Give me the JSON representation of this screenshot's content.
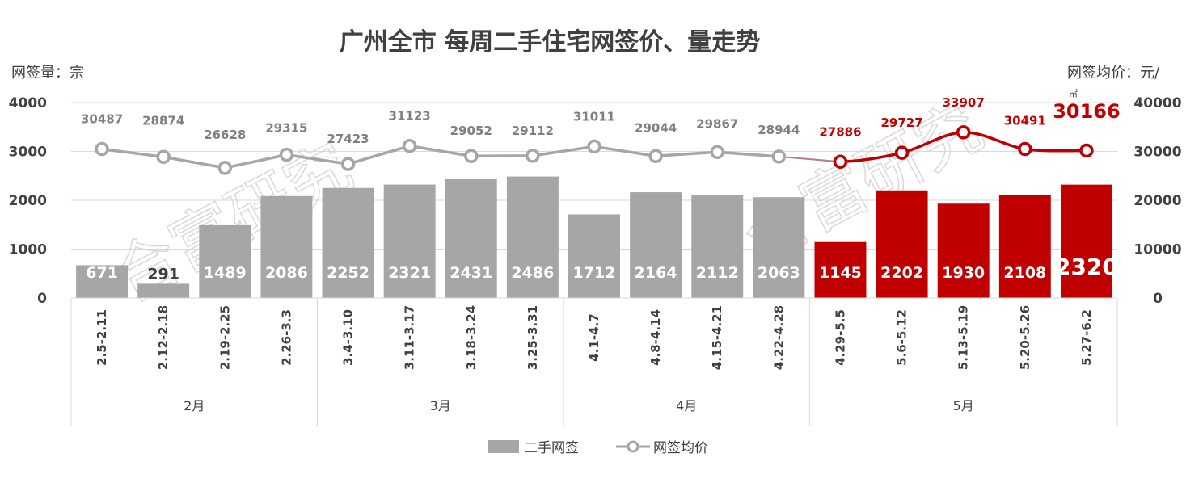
{
  "chart_data": {
    "type": "bar",
    "title": "广州全市  每周二手住宅网签价、量走势",
    "ylabel_left": "网签量：宗",
    "ylabel_right": "网签均价：元/",
    "ylabel_right_unit": "㎡",
    "y_left_ticks": [
      "0",
      "1000",
      "2000",
      "3000",
      "4000"
    ],
    "y_right_ticks": [
      "0",
      "10000",
      "20000",
      "30000",
      "40000"
    ],
    "ylim_left": [
      0,
      4000
    ],
    "ylim_right": [
      0,
      40000
    ],
    "categories": [
      "2.5-2.11",
      "2.12-2.18",
      "2.19-2.25",
      "2.26-3.3",
      "3.4-3.10",
      "3.11-3.17",
      "3.18-3.24",
      "3.25-3.31",
      "4.1-4.7",
      "4.8-4.14",
      "4.15-4.21",
      "4.22-4.28",
      "4.29-5.5",
      "5.6-5.12",
      "5.13-5.19",
      "5.20-5.26",
      "5.27-6.2"
    ],
    "months": [
      {
        "label": "2月",
        "count": 4
      },
      {
        "label": "3月",
        "count": 4
      },
      {
        "label": "4月",
        "count": 4
      },
      {
        "label": "5月",
        "count": 5
      }
    ],
    "series": [
      {
        "name": "二手网签",
        "kind": "bar",
        "axis": "left",
        "values": [
          671,
          291,
          1489,
          2086,
          2252,
          2321,
          2431,
          2486,
          1712,
          2164,
          2112,
          2063,
          1145,
          2202,
          1930,
          2108,
          2320
        ],
        "labels": [
          "671",
          "291",
          "1489",
          "2086",
          "2252",
          "2321",
          "2431",
          "2486",
          "1712",
          "2164",
          "2112",
          "2063",
          "1145",
          "2202",
          "1930",
          "2108",
          "2320"
        ]
      },
      {
        "name": "网签均价",
        "kind": "line",
        "axis": "right",
        "values": [
          30487,
          28874,
          26628,
          29315,
          27423,
          31123,
          29052,
          29112,
          31011,
          29044,
          29867,
          28944,
          27886,
          29727,
          33907,
          30491,
          30166
        ],
        "labels": [
          "30487",
          "28874",
          "26628",
          "29315",
          "27423",
          "31123",
          "29052",
          "29112",
          "31011",
          "29044",
          "29867",
          "28944",
          "27886",
          "29727",
          "33907",
          "30491",
          "30166"
        ]
      }
    ],
    "highlight_start_index": 12,
    "colors": {
      "gray_bar": "#a6a6a6",
      "gray_line": "#a6a6a6",
      "highlight": "#c00000",
      "text": "#404040",
      "grid": "#d9d9d9"
    },
    "legend_placement": "bottom",
    "grid": true,
    "watermark": "合富研究"
  }
}
